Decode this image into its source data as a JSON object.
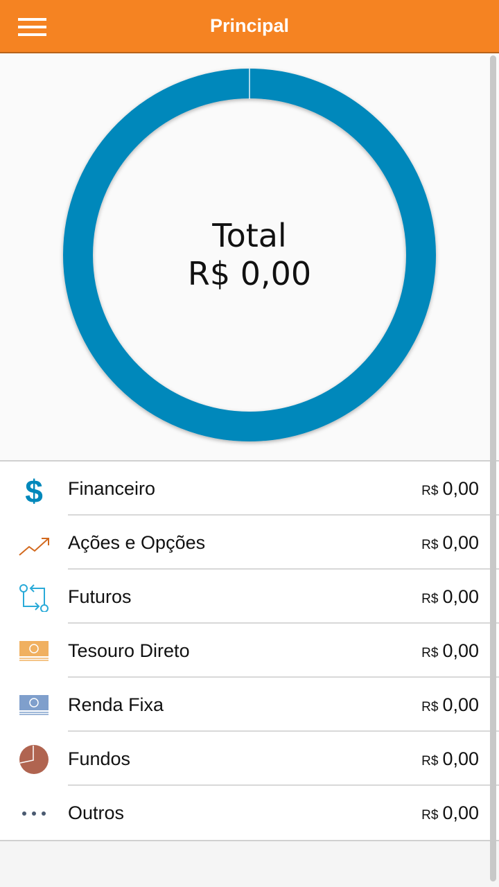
{
  "header": {
    "title": "Principal",
    "menu_icon": "hamburger-menu-icon"
  },
  "chart_data": {
    "type": "pie",
    "style": "donut",
    "center_label": "Total",
    "center_value": "R$ 0,00",
    "values": [
      0
    ],
    "colors": [
      "#0088bb"
    ]
  },
  "currency_prefix": "R$",
  "items": [
    {
      "label": "Financeiro",
      "value": "0,00",
      "icon": "dollar-icon",
      "color": "#0088bb"
    },
    {
      "label": "Ações e Opções",
      "value": "0,00",
      "icon": "trending-up-icon",
      "color": "#d2691e"
    },
    {
      "label": "Futuros",
      "value": "0,00",
      "icon": "swap-arrows-icon",
      "color": "#29aad8"
    },
    {
      "label": "Tesouro Direto",
      "value": "0,00",
      "icon": "banknote-icon",
      "color": "#f0b060"
    },
    {
      "label": "Renda Fixa",
      "value": "0,00",
      "icon": "banknote-icon",
      "color": "#7f9fcc"
    },
    {
      "label": "Fundos",
      "value": "0,00",
      "icon": "pie-chart-icon",
      "color": "#b06450"
    },
    {
      "label": "Outros",
      "value": "0,00",
      "icon": "more-dots-icon",
      "color": "#4a5a70"
    }
  ]
}
